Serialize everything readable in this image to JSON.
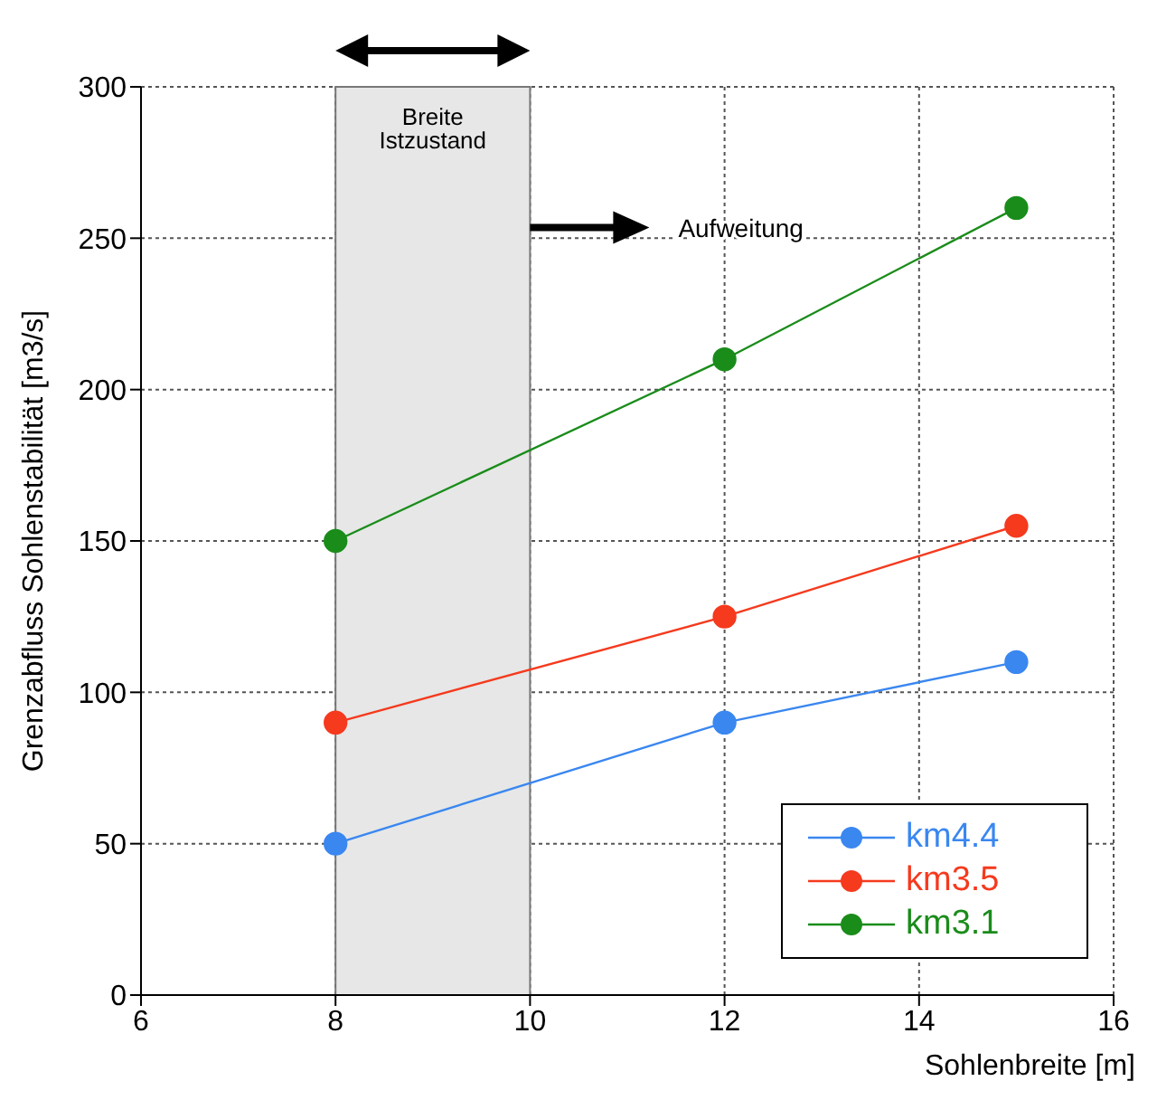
{
  "chart_data": {
    "type": "line",
    "xlabel": "Sohlenbreite [m]",
    "ylabel": "Grenzabfluss Sohlenstabilität [m3/s]",
    "x": [
      8,
      12,
      15
    ],
    "series": [
      {
        "name": "km4.4",
        "color": "#3a87f0",
        "values": [
          50,
          90,
          110
        ]
      },
      {
        "name": "km3.5",
        "color": "#f53a1e",
        "values": [
          90,
          125,
          155
        ]
      },
      {
        "name": "km3.1",
        "color": "#1a8c1a",
        "values": [
          150,
          210,
          260
        ]
      }
    ],
    "xlim": [
      6,
      16
    ],
    "xticks": [
      6,
      8,
      10,
      12,
      14,
      16
    ],
    "ylim": [
      0,
      300
    ],
    "yticks": [
      0,
      50,
      100,
      150,
      200,
      250,
      300
    ],
    "bands": [
      {
        "axis": "x",
        "from": 8,
        "to": 10,
        "label": "Breite Istzustand",
        "color": "#e6e7e6"
      }
    ],
    "annotations": [
      "Aufweitung"
    ],
    "grid": true,
    "legend": "bottom right",
    "marker": "circle",
    "line_style": "solid"
  }
}
